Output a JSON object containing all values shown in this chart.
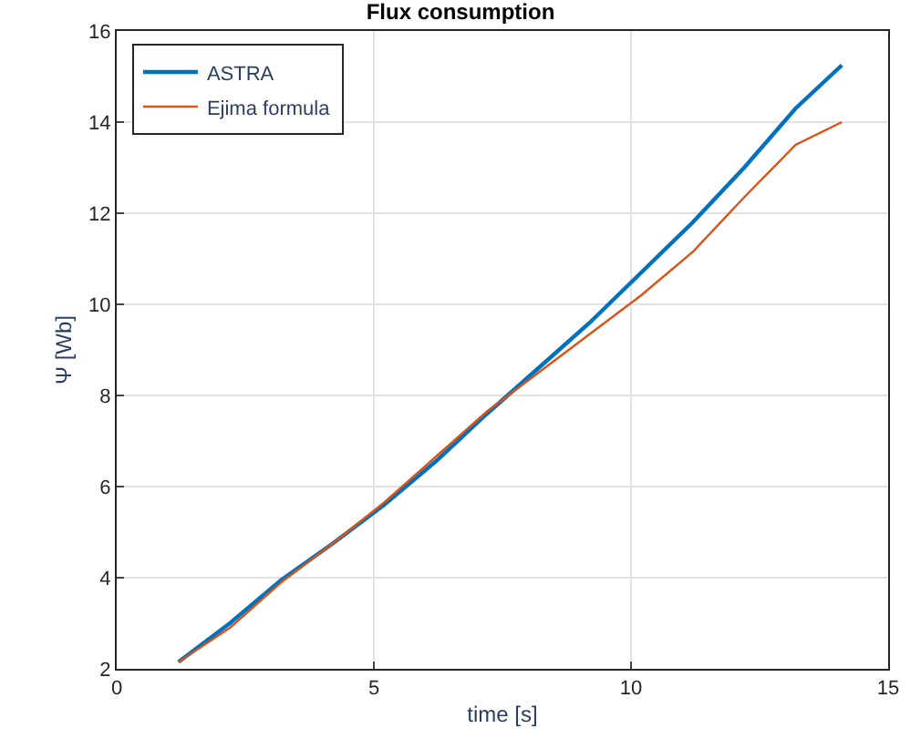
{
  "chart_data": {
    "type": "line",
    "title": "Flux consumption",
    "xlabel": "time [s]",
    "ylabel": "Ψ [Wb]",
    "xlim": [
      0,
      15
    ],
    "xticks": [
      0,
      5,
      10,
      15
    ],
    "ylim": [
      2,
      16
    ],
    "yticks": [
      2,
      4,
      6,
      8,
      10,
      12,
      14,
      16
    ],
    "grid": true,
    "legend": "top left",
    "series": [
      {
        "name": "ASTRA",
        "color": "#0072bd",
        "x": [
          1.2,
          2.2,
          3.2,
          4.2,
          5.2,
          6.2,
          7.2,
          8.2,
          9.2,
          10.2,
          11.2,
          12.2,
          13.2,
          14.1
        ],
        "values": [
          2.15,
          3.0,
          3.95,
          4.75,
          5.6,
          6.55,
          7.6,
          8.6,
          9.6,
          10.7,
          11.8,
          13.0,
          14.3,
          15.25
        ]
      },
      {
        "name": "Ejima formula",
        "color": "#d95319",
        "x": [
          1.2,
          2.2,
          3.2,
          4.2,
          5.2,
          6.2,
          7.2,
          8.2,
          9.2,
          10.2,
          11.2,
          12.2,
          13.2,
          14.1
        ],
        "values": [
          2.15,
          2.9,
          3.9,
          4.75,
          5.65,
          6.65,
          7.65,
          8.5,
          9.35,
          10.2,
          11.15,
          12.35,
          13.5,
          14.0
        ]
      }
    ]
  }
}
